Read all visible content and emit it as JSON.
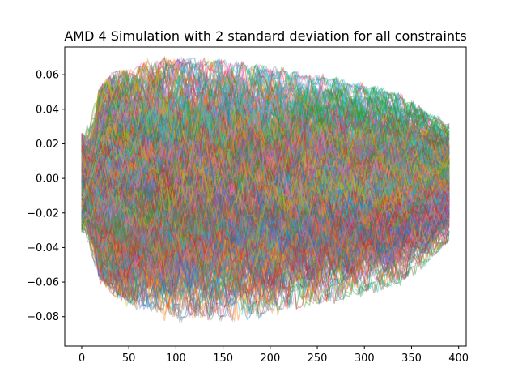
{
  "chart_data": {
    "type": "line",
    "title": "AMD 4 Simulation with 2 standard deviation for all constraints",
    "xlabel": "",
    "ylabel": "",
    "xlim": [
      -18,
      408
    ],
    "ylim": [
      -0.097,
      0.076
    ],
    "x_ticks": [
      0,
      50,
      100,
      150,
      200,
      250,
      300,
      350,
      400
    ],
    "y_ticks": [
      -0.08,
      -0.06,
      -0.04,
      -0.02,
      0.0,
      0.02,
      0.04,
      0.06
    ],
    "x_tick_labels": [
      "0",
      "50",
      "100",
      "150",
      "200",
      "250",
      "300",
      "350",
      "400"
    ],
    "y_tick_labels": [
      "−0.08",
      "−0.06",
      "−0.04",
      "−0.02",
      "0.00",
      "0.02",
      "0.04",
      "0.06"
    ],
    "num_steps": 390,
    "start_value_range": [
      -0.03,
      0.025
    ],
    "end_value_range": [
      -0.035,
      0.027
    ],
    "upper_envelope": [
      [
        0,
        0.025
      ],
      [
        10,
        0.042
      ],
      [
        30,
        0.055
      ],
      [
        80,
        0.064
      ],
      [
        150,
        0.063
      ],
      [
        250,
        0.055
      ],
      [
        330,
        0.046
      ],
      [
        390,
        0.028
      ]
    ],
    "lower_envelope": [
      [
        0,
        -0.03
      ],
      [
        10,
        -0.05
      ],
      [
        40,
        -0.065
      ],
      [
        100,
        -0.077
      ],
      [
        180,
        -0.076
      ],
      [
        270,
        -0.068
      ],
      [
        340,
        -0.058
      ],
      [
        390,
        -0.036
      ]
    ],
    "series_colors": [
      "#1f77b4",
      "#ff7f0e",
      "#2ca02c",
      "#d62728",
      "#9467bd",
      "#8c564b",
      "#e377c2",
      "#7f7f7f",
      "#bcbd22",
      "#17becf"
    ],
    "grid": false,
    "legend": "none"
  }
}
